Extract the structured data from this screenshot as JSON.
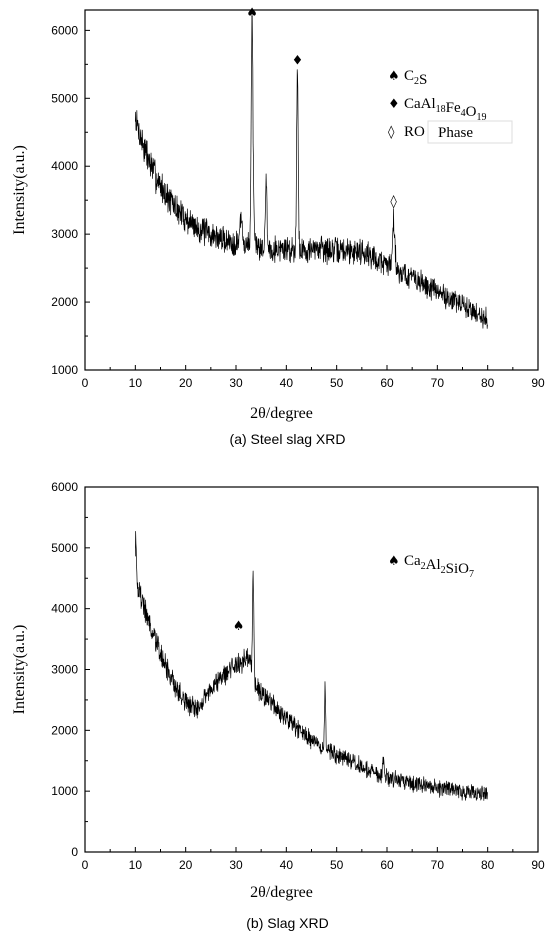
{
  "chart_data": [
    {
      "type": "line",
      "title": "",
      "xlabel": "2θ/degree",
      "ylabel": "Intensity(a.u.)",
      "xlim": [
        0,
        90
      ],
      "ylim": [
        1000,
        6300
      ],
      "xticks": [
        "0",
        "10",
        "20",
        "30",
        "40",
        "50",
        "60",
        "70",
        "80",
        "90"
      ],
      "yticks": [
        "1000",
        "2000",
        "3000",
        "4000",
        "5000",
        "6000"
      ],
      "grid": false,
      "legend_position": "top-right",
      "legend": [
        {
          "symbol": "♠",
          "label": "C",
          "sub1": "2",
          "label2": "S"
        },
        {
          "symbol": "♦",
          "label": "CaAl",
          "sub1": "18",
          "label2": "Fe",
          "sub2": "4",
          "label3": "O",
          "sub3": "19"
        },
        {
          "symbol": "◊",
          "label": "RO",
          "boxed_label": "Phase"
        }
      ],
      "baseline": {
        "x_start": 10,
        "x_end": 80,
        "y_start": 4700,
        "decay_to": 2750,
        "decay_rate": 0.14,
        "late_slope_end": 1750
      },
      "peaks": [
        {
          "x": 31.0,
          "y": 3200,
          "w": 0.25
        },
        {
          "x": 33.2,
          "y": 6150,
          "w": 0.18
        },
        {
          "x": 36.0,
          "y": 3850,
          "w": 0.15
        },
        {
          "x": 42.2,
          "y": 5350,
          "w": 0.16
        },
        {
          "x": 47.0,
          "y": 2950,
          "w": 0.18
        },
        {
          "x": 61.3,
          "y": 3200,
          "w": 0.25
        }
      ],
      "noise": 260,
      "annotations": [
        {
          "x": 33.2,
          "y": 6200,
          "symbol": "♠"
        },
        {
          "x": 42.2,
          "y": 5500,
          "symbol": "♦"
        },
        {
          "x": 61.3,
          "y": 3420,
          "symbol": "◊"
        }
      ],
      "caption": "(a) Steel slag XRD"
    },
    {
      "type": "line",
      "title": "",
      "xlabel": "2θ/degree",
      "ylabel": "Intensity(a.u.)",
      "xlim": [
        0,
        90
      ],
      "ylim": [
        0,
        6000
      ],
      "xticks": [
        "0",
        "10",
        "20",
        "30",
        "40",
        "50",
        "60",
        "70",
        "80",
        "90"
      ],
      "yticks": [
        "0",
        "1000",
        "2000",
        "3000",
        "4000",
        "5000",
        "6000"
      ],
      "grid": false,
      "legend_position": "top-right",
      "legend": [
        {
          "symbol": "♠",
          "label": "Ca",
          "sub1": "2",
          "label2": "Al",
          "sub2": "2",
          "label3": "SiO",
          "sub3": "7"
        }
      ],
      "baseline": {
        "x_start": 10,
        "x_end": 80,
        "y_start": 4500,
        "decay_to": 800,
        "hump_x": 30,
        "hump_y": 3150,
        "min_x": 22,
        "min_y": 2350
      },
      "peaks": [
        {
          "x": 10.1,
          "y": 5200,
          "w": 0.12
        },
        {
          "x": 33.4,
          "y": 4500,
          "w": 0.14
        },
        {
          "x": 47.7,
          "y": 2700,
          "w": 0.12
        },
        {
          "x": 59.3,
          "y": 1550,
          "w": 0.15
        }
      ],
      "noise": 220,
      "annotations": [
        {
          "x": 30.5,
          "y": 3650,
          "symbol": "♠"
        }
      ],
      "caption": "(b) Slag XRD"
    }
  ]
}
